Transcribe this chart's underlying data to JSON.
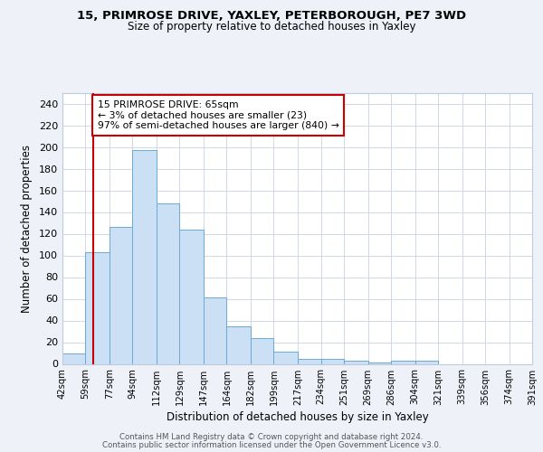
{
  "title1": "15, PRIMROSE DRIVE, YAXLEY, PETERBOROUGH, PE7 3WD",
  "title2": "Size of property relative to detached houses in Yaxley",
  "xlabel": "Distribution of detached houses by size in Yaxley",
  "ylabel": "Number of detached properties",
  "bar_labels": [
    "42sqm",
    "59sqm",
    "77sqm",
    "94sqm",
    "112sqm",
    "129sqm",
    "147sqm",
    "164sqm",
    "182sqm",
    "199sqm",
    "217sqm",
    "234sqm",
    "251sqm",
    "269sqm",
    "286sqm",
    "304sqm",
    "321sqm",
    "339sqm",
    "356sqm",
    "374sqm",
    "391sqm"
  ],
  "bins": [
    42,
    59,
    77,
    94,
    112,
    129,
    147,
    164,
    182,
    199,
    217,
    234,
    251,
    269,
    286,
    304,
    321,
    339,
    356,
    374,
    391
  ],
  "bar_heights": [
    10,
    103,
    126,
    197,
    148,
    124,
    61,
    35,
    24,
    11,
    5,
    5,
    3,
    1,
    3,
    3,
    0,
    0,
    0,
    0
  ],
  "bar_color": "#cce0f5",
  "bar_edge_color": "#6aaad4",
  "vline_x": 65,
  "vline_color": "#cc0000",
  "annotation_text": "15 PRIMROSE DRIVE: 65sqm\n← 3% of detached houses are smaller (23)\n97% of semi-detached houses are larger (840) →",
  "annotation_box_color": "white",
  "annotation_box_edge": "#cc0000",
  "ylim": [
    0,
    250
  ],
  "yticks": [
    0,
    20,
    40,
    60,
    80,
    100,
    120,
    140,
    160,
    180,
    200,
    220,
    240
  ],
  "footer1": "Contains HM Land Registry data © Crown copyright and database right 2024.",
  "footer2": "Contains public sector information licensed under the Open Government Licence v3.0.",
  "bg_color": "#eef2f8",
  "plot_bg_color": "#ffffff",
  "grid_color": "#d0d8e8"
}
